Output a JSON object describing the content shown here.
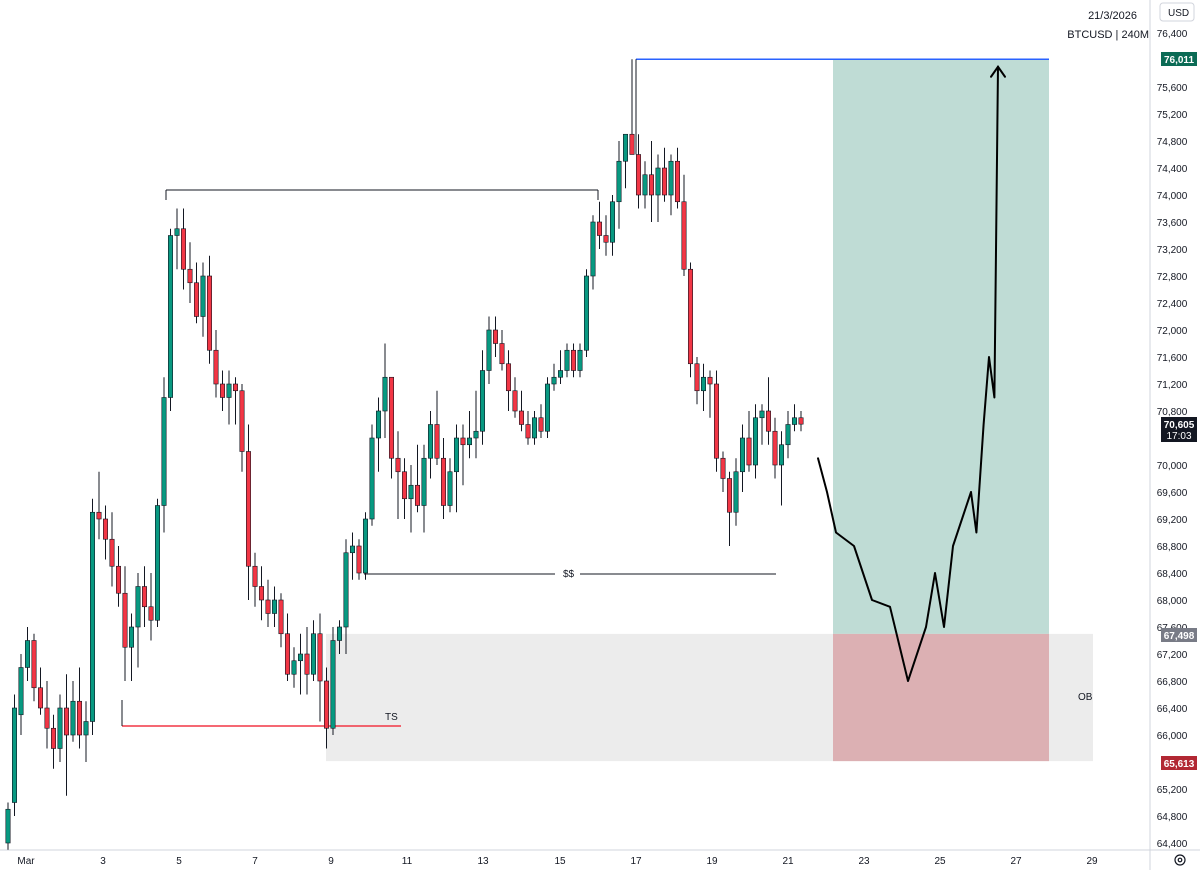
{
  "header": {
    "date": "21/3/2026",
    "symbol": "BTCUSD | 240M",
    "currency": "USD"
  },
  "colors": {
    "up": "#089981",
    "down": "#f23645",
    "profit_zone": "#bfdcd5",
    "loss_zone": "#dcb0b3",
    "ob_zone": "#ececec",
    "target_line": "#2962ff",
    "ts_line": "#f23645",
    "target_badge": "#0b6b55",
    "stop_badge": "#b22833",
    "entry_badge": "#787b86",
    "current_badge": "#131722"
  },
  "badges": {
    "target": "76,011",
    "entry": "67,498",
    "stop": "65,613",
    "current_price": "70,605",
    "countdown": "17:03"
  },
  "annotations": {
    "ts": "TS",
    "ss": "$$",
    "ob": "OB"
  },
  "chart_data": {
    "type": "candlestick",
    "symbol": "BTCUSD",
    "timeframe": "240M",
    "currency": "USD",
    "y_ticks": [
      "76,400",
      "75,600",
      "75,200",
      "74,800",
      "74,400",
      "74,000",
      "73,600",
      "73,200",
      "72,800",
      "72,400",
      "72,000",
      "71,600",
      "71,200",
      "70,800",
      "70,000",
      "69,600",
      "69,200",
      "68,800",
      "68,400",
      "68,000",
      "67,600",
      "67,200",
      "66,800",
      "66,400",
      "66,000",
      "65,200",
      "64,800",
      "64,400"
    ],
    "x_ticks": [
      "Mar",
      "3",
      "5",
      "7",
      "9",
      "11",
      "13",
      "15",
      "17",
      "19",
      "21",
      "23",
      "25",
      "27",
      "29"
    ],
    "ylim": [
      64300,
      76800
    ],
    "candles_ohlc": [
      [
        64400,
        65000,
        64300,
        64900
      ],
      [
        65000,
        66600,
        64800,
        66400
      ],
      [
        66300,
        67200,
        66000,
        67000
      ],
      [
        67000,
        67600,
        66800,
        67400
      ],
      [
        67400,
        67500,
        66500,
        66700
      ],
      [
        66700,
        67000,
        66300,
        66400
      ],
      [
        66400,
        66800,
        65800,
        66100
      ],
      [
        66100,
        66300,
        65500,
        65800
      ],
      [
        65800,
        66600,
        65600,
        66400
      ],
      [
        66400,
        66900,
        65100,
        66000
      ],
      [
        66000,
        66800,
        65900,
        66500
      ],
      [
        66500,
        67000,
        65800,
        66000
      ],
      [
        66000,
        66500,
        65600,
        66200
      ],
      [
        66200,
        69500,
        66000,
        69300
      ],
      [
        69300,
        69900,
        68900,
        69200
      ],
      [
        69200,
        69400,
        68600,
        68900
      ],
      [
        68900,
        69300,
        68200,
        68500
      ],
      [
        68500,
        68800,
        67900,
        68100
      ],
      [
        68100,
        68500,
        66800,
        67300
      ],
      [
        67300,
        67800,
        66800,
        67600
      ],
      [
        67600,
        68400,
        67000,
        68200
      ],
      [
        68200,
        68500,
        67600,
        67900
      ],
      [
        67900,
        68400,
        67400,
        67700
      ],
      [
        67700,
        69500,
        67600,
        69400
      ],
      [
        69400,
        71300,
        69000,
        71000
      ],
      [
        71000,
        73500,
        70800,
        73400
      ],
      [
        73400,
        73800,
        72900,
        73500
      ],
      [
        73500,
        73800,
        72600,
        72900
      ],
      [
        72900,
        73300,
        72400,
        72700
      ],
      [
        72700,
        73000,
        72100,
        72200
      ],
      [
        72200,
        73000,
        71900,
        72800
      ],
      [
        72800,
        73100,
        71500,
        71700
      ],
      [
        71700,
        72000,
        71000,
        71200
      ],
      [
        71200,
        71400,
        70800,
        71000
      ],
      [
        71000,
        71400,
        70600,
        71200
      ],
      [
        71200,
        71300,
        70600,
        71100
      ],
      [
        71100,
        71200,
        69900,
        70200
      ],
      [
        70200,
        70600,
        68000,
        68500
      ],
      [
        68500,
        68700,
        67900,
        68200
      ],
      [
        68200,
        68500,
        67700,
        68000
      ],
      [
        68000,
        68300,
        67600,
        67800
      ],
      [
        67800,
        68200,
        67600,
        68000
      ],
      [
        68000,
        68100,
        67300,
        67500
      ],
      [
        67500,
        67800,
        66800,
        66900
      ],
      [
        66900,
        67300,
        66700,
        67100
      ],
      [
        67100,
        67500,
        66600,
        67200
      ],
      [
        67200,
        67600,
        66600,
        66900
      ],
      [
        66900,
        67700,
        66800,
        67500
      ],
      [
        67500,
        67800,
        66200,
        66800
      ],
      [
        66800,
        67000,
        65800,
        66100
      ],
      [
        66100,
        67600,
        66000,
        67400
      ],
      [
        67400,
        67700,
        67200,
        67600
      ],
      [
        67600,
        68900,
        67200,
        68700
      ],
      [
        68700,
        69000,
        68300,
        68800
      ],
      [
        68800,
        68900,
        68300,
        68400
      ],
      [
        68400,
        69300,
        68300,
        69200
      ],
      [
        69200,
        70600,
        69100,
        70400
      ],
      [
        70400,
        71000,
        69900,
        70800
      ],
      [
        70800,
        71800,
        70400,
        71300
      ],
      [
        71300,
        71300,
        69800,
        70100
      ],
      [
        70100,
        70500,
        69200,
        69900
      ],
      [
        69900,
        70100,
        69200,
        69500
      ],
      [
        69500,
        70000,
        69000,
        69700
      ],
      [
        69700,
        70300,
        69300,
        69400
      ],
      [
        69400,
        70300,
        69000,
        70100
      ],
      [
        70100,
        70800,
        69800,
        70600
      ],
      [
        70600,
        71100,
        70000,
        70100
      ],
      [
        70100,
        70400,
        69200,
        69400
      ],
      [
        69400,
        70100,
        69300,
        69900
      ],
      [
        69900,
        70600,
        69300,
        70400
      ],
      [
        70400,
        70600,
        69700,
        70300
      ],
      [
        70300,
        70800,
        70100,
        70400
      ],
      [
        70400,
        71100,
        70100,
        70500
      ],
      [
        70500,
        71700,
        70300,
        71400
      ],
      [
        71400,
        72200,
        71200,
        72000
      ],
      [
        72000,
        72200,
        71600,
        71800
      ],
      [
        71800,
        72000,
        71400,
        71500
      ],
      [
        71500,
        71700,
        70800,
        71100
      ],
      [
        71100,
        71300,
        70700,
        70800
      ],
      [
        70800,
        71100,
        70500,
        70600
      ],
      [
        70600,
        70800,
        70300,
        70400
      ],
      [
        70400,
        70800,
        70300,
        70700
      ],
      [
        70700,
        70900,
        70400,
        70500
      ],
      [
        70500,
        71300,
        70400,
        71200
      ],
      [
        71200,
        71500,
        71100,
        71300
      ],
      [
        71300,
        71700,
        71200,
        71400
      ],
      [
        71400,
        71800,
        71300,
        71700
      ],
      [
        71700,
        71800,
        71300,
        71400
      ],
      [
        71400,
        71800,
        71300,
        71700
      ],
      [
        71700,
        72900,
        71600,
        72800
      ],
      [
        72800,
        73700,
        72600,
        73600
      ],
      [
        73600,
        73900,
        73200,
        73400
      ],
      [
        73400,
        73700,
        73100,
        73300
      ],
      [
        73300,
        74000,
        73100,
        73900
      ],
      [
        73900,
        74800,
        73500,
        74500
      ],
      [
        74500,
        74900,
        74100,
        74900
      ],
      [
        74900,
        76011,
        74700,
        74600
      ],
      [
        74600,
        74900,
        73800,
        74000
      ],
      [
        74000,
        74500,
        73800,
        74300
      ],
      [
        74300,
        74800,
        73600,
        74000
      ],
      [
        74000,
        74600,
        73600,
        74400
      ],
      [
        74400,
        74700,
        73900,
        74000
      ],
      [
        74000,
        74600,
        73700,
        74500
      ],
      [
        74500,
        74700,
        73800,
        73900
      ],
      [
        73900,
        74300,
        72800,
        72900
      ],
      [
        72900,
        73000,
        71300,
        71500
      ],
      [
        71500,
        71600,
        70900,
        71100
      ],
      [
        71100,
        71500,
        70800,
        71300
      ],
      [
        71300,
        71400,
        70700,
        71200
      ],
      [
        71200,
        71400,
        69900,
        70100
      ],
      [
        70100,
        70200,
        69600,
        69800
      ],
      [
        69800,
        69900,
        68800,
        69300
      ],
      [
        69300,
        70100,
        69100,
        69900
      ],
      [
        69900,
        70600,
        69600,
        70400
      ],
      [
        70400,
        70800,
        69900,
        70000
      ],
      [
        70000,
        70900,
        69800,
        70700
      ],
      [
        70700,
        70900,
        70300,
        70800
      ],
      [
        70800,
        71300,
        70300,
        70500
      ],
      [
        70500,
        70700,
        69800,
        70000
      ],
      [
        70000,
        70500,
        69400,
        70300
      ],
      [
        70300,
        70800,
        70100,
        70600
      ],
      [
        70600,
        70900,
        70500,
        70700
      ],
      [
        70700,
        70800,
        70500,
        70605
      ]
    ],
    "lines": [
      {
        "label": "",
        "price": 76011,
        "note": "target level"
      },
      {
        "label": "",
        "price": 74400,
        "note": "prior high"
      },
      {
        "label": "$$",
        "price": 68400
      },
      {
        "label": "TS",
        "price": 66100
      }
    ],
    "zones": [
      {
        "label": "",
        "from": 67498,
        "to": 76011,
        "kind": "profit"
      },
      {
        "label": "",
        "from": 65613,
        "to": 67498,
        "kind": "loss"
      },
      {
        "label": "OB",
        "from": 65613,
        "to": 67498,
        "kind": "order-block"
      }
    ],
    "position": {
      "entry": 67498,
      "target": 76011,
      "stop": 65613
    },
    "projection_path": [
      [
        70100,
        0
      ],
      [
        69600,
        0.05
      ],
      [
        69000,
        0.1
      ],
      [
        68800,
        0.2
      ],
      [
        68000,
        0.3
      ],
      [
        67900,
        0.4
      ],
      [
        66800,
        0.5
      ],
      [
        67600,
        0.6
      ],
      [
        68400,
        0.65
      ],
      [
        67600,
        0.7
      ],
      [
        68800,
        0.75
      ],
      [
        69200,
        0.8
      ],
      [
        69600,
        0.85
      ],
      [
        69000,
        0.88
      ],
      [
        70600,
        0.92
      ],
      [
        71600,
        0.95
      ],
      [
        71000,
        0.98
      ],
      [
        75900,
        1
      ]
    ],
    "grid": false,
    "legend": "none"
  }
}
